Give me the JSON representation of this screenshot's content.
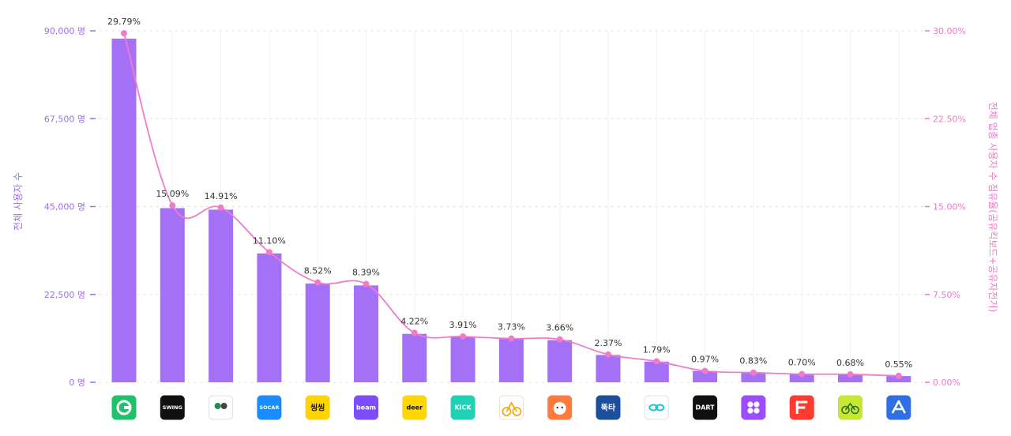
{
  "chart_data": {
    "type": "bar",
    "categories": [
      "",
      "",
      "",
      "",
      "",
      "",
      "",
      "",
      "",
      "",
      "",
      "",
      "",
      "",
      "",
      "",
      ""
    ],
    "series": [
      {
        "values": [
          88000,
          44600,
          44200,
          33000,
          25300,
          24800,
          12400,
          11600,
          11100,
          10800,
          7000,
          5300,
          2900,
          2500,
          2100,
          2000,
          1600
        ]
      },
      {
        "values": [
          29.79,
          15.09,
          14.91,
          11.1,
          8.52,
          8.39,
          4.22,
          3.91,
          3.73,
          3.66,
          2.37,
          1.79,
          0.97,
          0.83,
          0.7,
          0.68,
          0.55
        ]
      }
    ],
    "point_labels": [
      "29.79%",
      "15.09%",
      "14.91%",
      "11.10%",
      "8.52%",
      "8.39%",
      "4.22%",
      "3.91%",
      "3.73%",
      "3.66%",
      "2.37%",
      "1.79%",
      "0.97%",
      "0.83%",
      "0.70%",
      "0.68%",
      "0.55%"
    ],
    "ylabel": "전체 사용자 수",
    "ylabel_right": "전체 업종 사용자 수 점유율(공유킥보드+공유자전거)",
    "ylim": [
      0,
      90000
    ],
    "ylim_right": [
      0,
      30
    ],
    "yticks_left": [
      "0 명",
      "22,500 명",
      "45,000 명",
      "67,500 명",
      "90,000 명"
    ],
    "yticks_right": [
      "0.00%",
      "7.50%",
      "15.00%",
      "22.50%",
      "30.00%"
    ],
    "grid": true,
    "colors": {
      "bar": "#a470f7",
      "line": "#f07cc9",
      "left_axis": "#9b6fe8",
      "right_axis": "#ee78c7"
    }
  },
  "app_icons": [
    {
      "icon": "g-logo-icon",
      "bg": "#1fc26b",
      "text": "",
      "color": "#ffffff"
    },
    {
      "icon": "swing-logo-icon",
      "bg": "#111111",
      "text": "SWING",
      "color": "#ffffff"
    },
    {
      "icon": "seoul-bike-icon",
      "bg": "#ffffff",
      "text": "서울자전거",
      "color": "#2a8a4a"
    },
    {
      "icon": "socar-elecle-icon",
      "bg": "#1a8cff",
      "text": "SOCAR",
      "color": "#ffffff"
    },
    {
      "icon": "ssing-ssing-icon",
      "bg": "#ffd400",
      "text": "씽씽",
      "color": "#111111"
    },
    {
      "icon": "beam-icon",
      "bg": "#7c4dff",
      "text": "beam",
      "color": "#ffffff"
    },
    {
      "icon": "deer-icon",
      "bg": "#ffd600",
      "text": "deer",
      "color": "#111111"
    },
    {
      "icon": "kick-icon",
      "bg": "#20d2b4",
      "text": "KICK",
      "color": "#ffffff"
    },
    {
      "icon": "bicycle-icon",
      "bg": "#ffffff",
      "text": "",
      "color": "#f5a300"
    },
    {
      "icon": "cat-face-icon",
      "bg": "#ff7a3c",
      "text": "",
      "color": "#ffffff"
    },
    {
      "icon": "ttukta-icon",
      "bg": "#1d4f9c",
      "text": "뚝타",
      "color": "#ffffff"
    },
    {
      "icon": "link-loop-icon",
      "bg": "#ffffff",
      "text": "",
      "color": "#21c3d8"
    },
    {
      "icon": "dart-icon",
      "bg": "#111111",
      "text": "DART",
      "color": "#ffffff"
    },
    {
      "icon": "flower-x-icon",
      "bg": "#9b4dff",
      "text": "",
      "color": "#ffffff"
    },
    {
      "icon": "f-logo-icon",
      "bg": "#ff3b30",
      "text": "",
      "color": "#ffffff"
    },
    {
      "icon": "green-bike-icon",
      "bg": "#c5e830",
      "text": "",
      "color": "#2a6b1f"
    },
    {
      "icon": "a-logo-icon",
      "bg": "#2f6fe6",
      "text": "",
      "color": "#ffffff"
    }
  ]
}
